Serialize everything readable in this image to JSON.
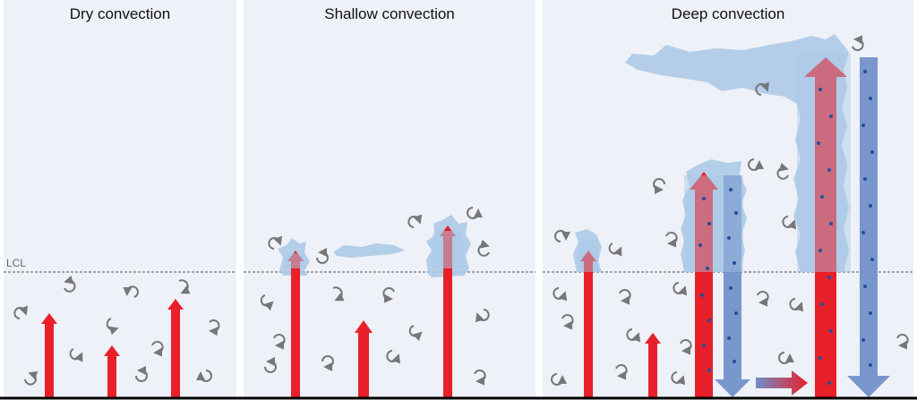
{
  "panels": [
    {
      "title": "Dry convection"
    },
    {
      "title": "Shallow convection"
    },
    {
      "title": "Deep convection"
    }
  ],
  "lcl_label": "LCL",
  "colors": {
    "background": "#eef1f8",
    "updraft": "#e8202a",
    "downdraft": "#6f8fc8",
    "cloud": "#a9c8e6",
    "droplet": "#1f4f9c",
    "eddy": "#777777",
    "ground": "#000000"
  }
}
